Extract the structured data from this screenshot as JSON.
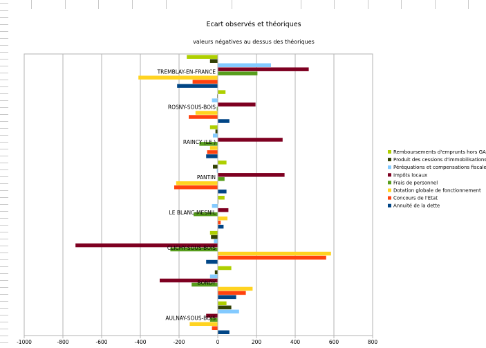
{
  "chart_data": {
    "type": "bar",
    "orientation": "horizontal",
    "title": "Ecart observés et théoriques",
    "subtitle": "valeurs négatives au dessus des théoriques",
    "xlabel": "",
    "ylabel": "",
    "xlim": [
      -1000,
      800
    ],
    "xticks": [
      -1000,
      -800,
      -600,
      -400,
      -200,
      0,
      200,
      400,
      600,
      800
    ],
    "xtick_labels": [
      "-1000",
      "-800",
      "-600",
      "-400",
      "-200",
      "0",
      "200",
      "400",
      "600",
      "800"
    ],
    "grid": true,
    "legend_position": "right",
    "categories": [
      "AULNAY-SOUS-BOIS",
      "BONDY",
      "CLICHY-SOUS-BOIS",
      "LE BLANC-MESNIL",
      "PANTIN",
      "RAINCY (LE )",
      "ROSNY-SOUS-BOIS",
      "TREMBLAY-EN-FRANCE"
    ],
    "series": [
      {
        "name": "Annuité de la dette",
        "color": "#004586",
        "values": [
          60,
          95,
          -60,
          30,
          45,
          -60,
          60,
          -210
        ]
      },
      {
        "name": "Concours de l'Etat",
        "color": "#ff420e",
        "values": [
          -30,
          145,
          560,
          15,
          -225,
          -55,
          -150,
          -130
        ]
      },
      {
        "name": "Dotation globale de fonctionnement",
        "color": "#ffd320",
        "values": [
          -145,
          180,
          585,
          50,
          -215,
          -40,
          -115,
          -410
        ]
      },
      {
        "name": "Frais de personnel",
        "color": "#579d1c",
        "values": [
          -40,
          -135,
          -245,
          -125,
          35,
          -95,
          -5,
          205
        ]
      },
      {
        "name": "Impôts locaux",
        "color": "#7e0021",
        "values": [
          -60,
          -300,
          -735,
          55,
          345,
          335,
          195,
          470
        ]
      },
      {
        "name": "Péréquations et compensations fiscales",
        "color": "#83caff",
        "values": [
          110,
          -40,
          -20,
          -30,
          -5,
          -25,
          -30,
          275
        ]
      },
      {
        "name": "Produit des cessions d'immobilisations",
        "color": "#314004",
        "values": [
          70,
          -15,
          -35,
          0,
          -25,
          -12,
          -3,
          -40
        ]
      },
      {
        "name": "Remboursements d'emprunts hors GAD",
        "color": "#aecf00",
        "values": [
          45,
          70,
          -40,
          35,
          45,
          -40,
          40,
          -160
        ]
      }
    ],
    "legend_order": [
      "Remboursements d'emprunts hors GAD",
      "Produit des cessions d'immobilisations",
      "Péréquations et compensations fiscales",
      "Impôts locaux",
      "Frais de personnel",
      "Dotation globale de fonctionnement",
      "Concours de l'Etat",
      "Annuité de la dette"
    ]
  }
}
